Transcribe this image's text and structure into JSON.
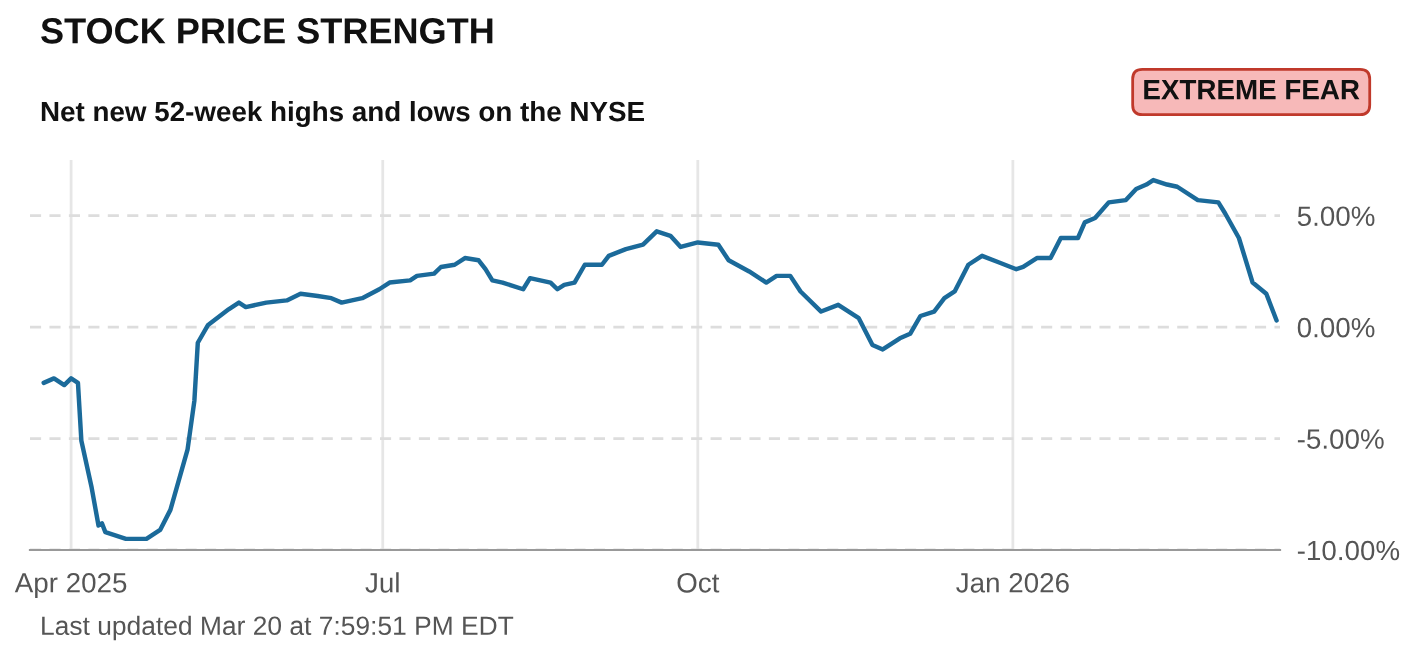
{
  "chart_data": {
    "type": "line",
    "title": "STOCK PRICE STRENGTH",
    "subtitle": "Net new 52-week highs and lows on the NYSE",
    "annotations": [
      "EXTREME FEAR",
      "Last updated Mar 20 at 7:59:51 PM EDT"
    ],
    "x": [
      "2025-03-24",
      "2025-03-27",
      "2025-03-30",
      "2025-04-01",
      "2025-04-03",
      "2025-04-04",
      "2025-04-07",
      "2025-04-09",
      "2025-04-10",
      "2025-04-11",
      "2025-04-17",
      "2025-04-23",
      "2025-04-27",
      "2025-04-30",
      "2025-05-05",
      "2025-05-07",
      "2025-05-08",
      "2025-05-11",
      "2025-05-17",
      "2025-05-20",
      "2025-05-22",
      "2025-05-28",
      "2025-06-03",
      "2025-06-07",
      "2025-06-12",
      "2025-06-16",
      "2025-06-19",
      "2025-06-25",
      "2025-06-30",
      "2025-07-03",
      "2025-07-09",
      "2025-07-11",
      "2025-07-16",
      "2025-07-18",
      "2025-07-22",
      "2025-07-25",
      "2025-07-29",
      "2025-07-31",
      "2025-08-02",
      "2025-08-05",
      "2025-08-11",
      "2025-08-13",
      "2025-08-19",
      "2025-08-21",
      "2025-08-23",
      "2025-08-26",
      "2025-08-29",
      "2025-09-03",
      "2025-09-05",
      "2025-09-10",
      "2025-09-15",
      "2025-09-19",
      "2025-09-23",
      "2025-09-26",
      "2025-10-01",
      "2025-10-07",
      "2025-10-10",
      "2025-10-16",
      "2025-10-21",
      "2025-10-24",
      "2025-10-28",
      "2025-10-31",
      "2025-11-06",
      "2025-11-11",
      "2025-11-17",
      "2025-11-21",
      "2025-11-24",
      "2025-11-29",
      "2025-12-02",
      "2025-12-05",
      "2025-12-09",
      "2025-12-12",
      "2025-12-15",
      "2025-12-19",
      "2025-12-23",
      "2025-12-28",
      "2026-01-02",
      "2026-01-04",
      "2026-01-08",
      "2026-01-12",
      "2026-01-15",
      "2026-01-20",
      "2026-01-22",
      "2026-01-25",
      "2026-01-29",
      "2026-02-03",
      "2026-02-06",
      "2026-02-09",
      "2026-02-11",
      "2026-02-15",
      "2026-02-18",
      "2026-02-24",
      "2026-03-02",
      "2026-03-04",
      "2026-03-08",
      "2026-03-12",
      "2026-03-16",
      "2026-03-19"
    ],
    "series": [
      {
        "color": "#1b6a9a",
        "values": [
          -2.5,
          -2.3,
          -2.6,
          -2.3,
          -2.5,
          -5.1,
          -7.2,
          -8.9,
          -8.8,
          -9.2,
          -9.5,
          -9.5,
          -9.1,
          -8.2,
          -5.5,
          -3.3,
          -0.7,
          0.1,
          0.8,
          1.1,
          0.9,
          1.1,
          1.2,
          1.5,
          1.4,
          1.3,
          1.1,
          1.3,
          1.7,
          2.0,
          2.1,
          2.3,
          2.4,
          2.7,
          2.8,
          3.1,
          3.0,
          2.6,
          2.1,
          2.0,
          1.7,
          2.2,
          2.0,
          1.7,
          1.9,
          2.0,
          2.8,
          2.8,
          3.2,
          3.5,
          3.7,
          4.3,
          4.1,
          3.6,
          3.8,
          3.7,
          3.0,
          2.5,
          2.0,
          2.3,
          2.3,
          1.6,
          0.7,
          1.0,
          0.4,
          -0.8,
          -1.0,
          -0.5,
          -0.3,
          0.5,
          0.7,
          1.3,
          1.6,
          2.8,
          3.2,
          2.9,
          2.6,
          2.7,
          3.1,
          3.1,
          4.0,
          4.0,
          4.7,
          4.9,
          5.6,
          5.7,
          6.2,
          6.4,
          6.6,
          6.4,
          6.3,
          5.7,
          5.6,
          5.1,
          4.0,
          2.0,
          1.5,
          0.3
        ]
      }
    ],
    "xlim": [
      "2025-03-20",
      "2026-03-20"
    ],
    "xticks": [
      {
        "value": "2025-04-01",
        "label": "Apr 2025"
      },
      {
        "value": "2025-07-01",
        "label": "Jul"
      },
      {
        "value": "2025-10-01",
        "label": "Oct"
      },
      {
        "value": "2026-01-01",
        "label": "Jan 2026"
      }
    ],
    "ylim": [
      -10,
      7.5
    ],
    "yticks": [
      {
        "value": -10,
        "label": "-10.00%"
      },
      {
        "value": -5,
        "label": "-5.00%"
      },
      {
        "value": 0,
        "label": "0.00%"
      },
      {
        "value": 5,
        "label": "5.00%"
      }
    ],
    "grid": true
  }
}
